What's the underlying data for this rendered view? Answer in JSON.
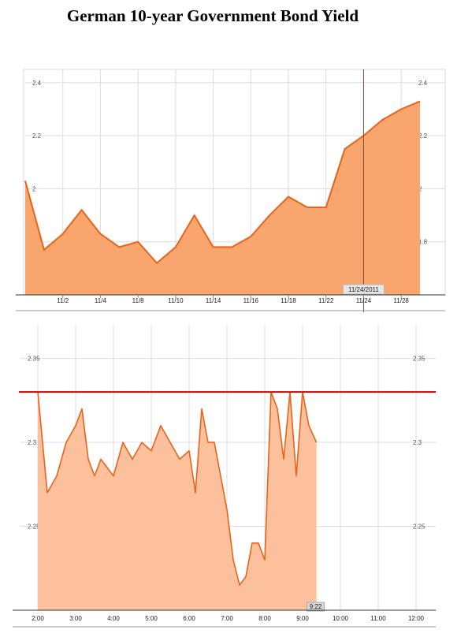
{
  "title": "German 10-year Government Bond Yield",
  "chart_data": [
    {
      "type": "area",
      "x": [
        "10/31",
        "11/1",
        "11/2",
        "11/3",
        "11/4",
        "11/7",
        "11/8",
        "11/9",
        "11/10",
        "11/11",
        "11/14",
        "11/15",
        "11/16",
        "11/17",
        "11/18",
        "11/21",
        "11/22",
        "11/23",
        "11/24",
        "11/25",
        "11/28",
        "11/29"
      ],
      "values": [
        2.03,
        1.77,
        1.83,
        1.92,
        1.83,
        1.78,
        1.8,
        1.72,
        1.78,
        1.9,
        1.78,
        1.78,
        1.82,
        1.9,
        1.97,
        1.93,
        1.93,
        2.15,
        2.2,
        2.26,
        2.3,
        2.33
      ],
      "xticks": [
        "11/2",
        "11/4",
        "11/8",
        "11/10",
        "11/14",
        "11/16",
        "11/18",
        "11/22",
        "11/24",
        "11/28"
      ],
      "yticks": [
        "1.8",
        "2",
        "2.2",
        "2.4"
      ],
      "ylim": [
        1.6,
        2.45
      ],
      "hover_label": "11/24/2011",
      "grid": true,
      "fill_color": "#f9a56e",
      "line_color": "#e8631c"
    },
    {
      "type": "area",
      "x": [
        "2:00",
        "2:15",
        "2:30",
        "2:45",
        "3:00",
        "3:10",
        "3:20",
        "3:30",
        "3:40",
        "3:50",
        "4:00",
        "4:15",
        "4:30",
        "4:45",
        "5:00",
        "5:15",
        "5:30",
        "5:45",
        "6:00",
        "6:10",
        "6:20",
        "6:30",
        "6:40",
        "6:50",
        "7:00",
        "7:10",
        "7:20",
        "7:30",
        "7:40",
        "7:50",
        "8:00",
        "8:05",
        "8:10",
        "8:20",
        "8:30",
        "8:40",
        "8:50",
        "9:00",
        "9:10",
        "9:22"
      ],
      "values": [
        2.33,
        2.27,
        2.28,
        2.3,
        2.31,
        2.32,
        2.29,
        2.28,
        2.29,
        2.285,
        2.28,
        2.3,
        2.29,
        2.3,
        2.295,
        2.31,
        2.3,
        2.29,
        2.295,
        2.27,
        2.32,
        2.3,
        2.3,
        2.28,
        2.26,
        2.23,
        2.215,
        2.22,
        2.24,
        2.24,
        2.23,
        2.28,
        2.33,
        2.32,
        2.29,
        2.33,
        2.28,
        2.33,
        2.31,
        2.3
      ],
      "xticks": [
        "2:00",
        "3:00",
        "4:00",
        "5:00",
        "6:00",
        "7:00",
        "8:00",
        "9:00",
        "10:00",
        "11:00",
        "12:00"
      ],
      "yticks": [
        "2.25",
        "2.3",
        "2.35"
      ],
      "ylim": [
        2.2,
        2.37
      ],
      "reference_line": 2.33,
      "reference_color": "#cc0000",
      "hover_label": "9:22",
      "grid": true,
      "fill_color": "#fcc19c",
      "line_color": "#e8631c"
    }
  ]
}
